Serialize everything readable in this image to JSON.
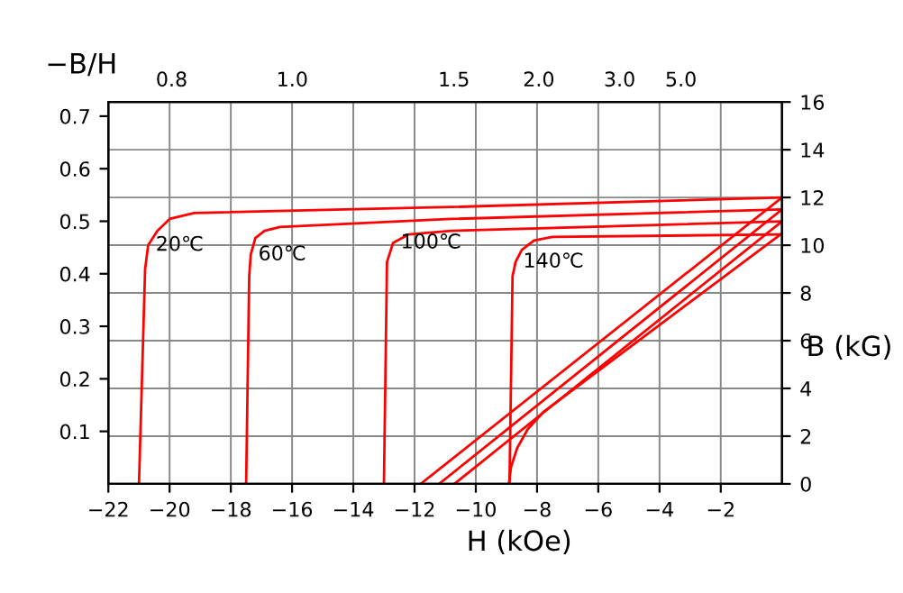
{
  "chart_data": {
    "type": "line",
    "xlabel": "H (kOe)",
    "ylabel": "−B/H",
    "y2label": "B (kG)",
    "xlim": [
      -22,
      0
    ],
    "xticks": [
      -22,
      -20,
      -18,
      -16,
      -14,
      -12,
      -10,
      -8,
      -6,
      -4,
      -2
    ],
    "annotations": [
      "0.8",
      "1.0",
      "1.5",
      "2.0",
      "3.0",
      "5.0"
    ],
    "ylim": [
      0,
      0.727
    ],
    "yticks": [
      0.1,
      0.2,
      0.3,
      0.4,
      0.5,
      0.6,
      0.7
    ],
    "y2lim": [
      0,
      16
    ],
    "y2ticks": [
      0,
      2,
      4,
      6,
      8,
      10,
      12,
      14,
      16
    ],
    "grid": true,
    "line_style": "solid",
    "marker": "none",
    "series": [
      {
        "axis": "y2",
        "name": "20℃",
        "color": "#ff0000",
        "x": [
          0,
          -10.8,
          -19.2,
          -20.0,
          -20.4,
          -20.7,
          -20.8,
          -21.0
        ],
        "values": [
          12.0,
          11.6,
          11.35,
          11.1,
          10.6,
          10.0,
          9.0,
          0
        ]
      },
      {
        "axis": "y2",
        "name": "60℃",
        "color": "#ff0000",
        "x": [
          0,
          -10.8,
          -16.4,
          -16.9,
          -17.2,
          -17.35,
          -17.4,
          -17.5
        ],
        "values": [
          11.5,
          11.1,
          10.76,
          10.6,
          10.3,
          9.6,
          8.7,
          0
        ]
      },
      {
        "axis": "y2",
        "name": "100℃",
        "color": "#ff0000",
        "x": [
          0,
          -10.8,
          -12.2,
          -12.7,
          -12.9,
          -13.0
        ],
        "values": [
          11.0,
          10.6,
          10.45,
          10.1,
          9.3,
          0
        ]
      },
      {
        "axis": "y2",
        "name": "140℃",
        "color": "#ff0000",
        "x": [
          0,
          -7.5,
          -8.1,
          -8.5,
          -8.7,
          -8.8,
          -8.9
        ],
        "values": [
          10.45,
          10.35,
          10.2,
          9.8,
          9.3,
          8.7,
          0
        ]
      },
      {
        "axis": "y2",
        "color": "#ff0000",
        "x": [
          0,
          -11.8
        ],
        "values": [
          12.0,
          0
        ]
      },
      {
        "axis": "y2",
        "color": "#ff0000",
        "x": [
          0,
          -11.2
        ],
        "values": [
          11.5,
          0
        ]
      },
      {
        "axis": "y2",
        "color": "#ff0000",
        "x": [
          0,
          -10.7
        ],
        "values": [
          11.0,
          0
        ]
      },
      {
        "axis": "y2",
        "color": "#ff0000",
        "x": [
          0,
          -7.8,
          -8.3,
          -8.65,
          -8.85,
          -8.92
        ],
        "values": [
          10.5,
          3.0,
          2.3,
          1.5,
          0.7,
          0
        ]
      }
    ]
  }
}
